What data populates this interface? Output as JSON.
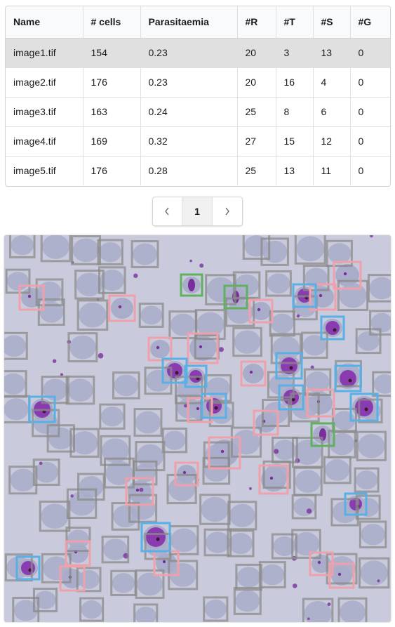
{
  "table": {
    "headers": [
      "Name",
      "# cells",
      "Parasitaemia",
      "#R",
      "#T",
      "#S",
      "#G"
    ],
    "rows": [
      [
        "image1.tif",
        "154",
        "0.23",
        "20",
        "3",
        "13",
        "0"
      ],
      [
        "image2.tif",
        "176",
        "0.23",
        "20",
        "16",
        "4",
        "0"
      ],
      [
        "image3.tif",
        "163",
        "0.24",
        "25",
        "8",
        "6",
        "0"
      ],
      [
        "image4.tif",
        "169",
        "0.32",
        "27",
        "15",
        "12",
        "0"
      ],
      [
        "image5.tif",
        "176",
        "0.28",
        "25",
        "13",
        "11",
        "0"
      ]
    ],
    "selected_row": 0
  },
  "pagination": {
    "prev_icon": "chevron-left-icon",
    "current_page": "1",
    "next_icon": "chevron-right-icon"
  },
  "image_view": {
    "description_colors": {
      "background": "#c9cbdd",
      "cell": "#a9adc9",
      "uninfected_box": "#8a8a8a",
      "ring_box": "#f0a0aa",
      "trophozoite_box": "#58b0e6",
      "gametocyte_box": "#5fb05f",
      "parasite": "#7b2f9e"
    }
  }
}
